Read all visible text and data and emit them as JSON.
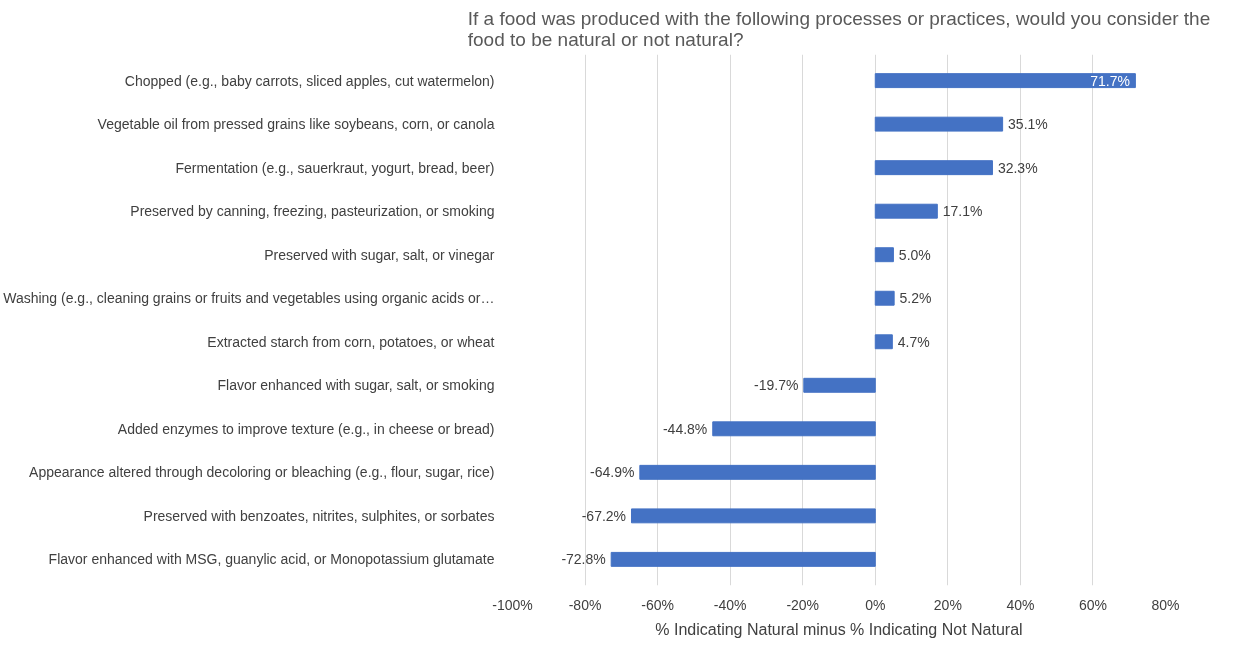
{
  "chart_data": {
    "type": "bar",
    "orientation": "horizontal",
    "title": "If a food was produced with the following processes or practices, would you consider the food to be natural or not natural?",
    "xlabel": "% Indicating Natural minus % Indicating Not Natural",
    "categories": [
      "Chopped (e.g., baby carrots, sliced apples, cut watermelon)",
      "Vegetable oil from pressed grains like soybeans, corn, or canola",
      "Fermentation (e.g., sauerkraut, yogurt, bread, beer)",
      "Preserved by canning, freezing, pasteurization, or smoking",
      "Preserved with sugar, salt, or vinegar",
      "Washing (e.g., cleaning grains or fruits and vegetables using organic acids or…",
      "Extracted starch from corn, potatoes, or wheat",
      "Flavor enhanced with sugar, salt, or smoking",
      "Added enzymes to improve texture (e.g., in cheese or bread)",
      "Appearance altered through decoloring or bleaching (e.g., flour, sugar, rice)",
      "Preserved with benzoates, nitrites, sulphites, or sorbates",
      "Flavor enhanced with MSG, guanylic acid, or Monopotassium glutamate"
    ],
    "values": [
      71.7,
      35.1,
      32.3,
      17.1,
      5.0,
      5.2,
      4.7,
      -19.7,
      -44.8,
      -64.9,
      -67.2,
      -72.8
    ],
    "value_labels": [
      "71.7%",
      "35.1%",
      "32.3%",
      "17.1%",
      "5.0%",
      "5.2%",
      "4.7%",
      "-19.7%",
      "-44.8%",
      "-64.9%",
      "-67.2%",
      "-72.8%"
    ],
    "color": "#4472c4",
    "xlim": [
      -100,
      80
    ],
    "xticks": [
      {
        "value": -100,
        "label": "-100%"
      },
      {
        "value": -80,
        "label": "-80%"
      },
      {
        "value": -60,
        "label": "-60%"
      },
      {
        "value": -40,
        "label": "-40%"
      },
      {
        "value": -20,
        "label": "-20%"
      },
      {
        "value": 0,
        "label": "0%"
      },
      {
        "value": 20,
        "label": "20%"
      },
      {
        "value": 40,
        "label": "40%"
      },
      {
        "value": 60,
        "label": "60%"
      },
      {
        "value": 80,
        "label": "80%"
      }
    ],
    "grid": "x"
  }
}
